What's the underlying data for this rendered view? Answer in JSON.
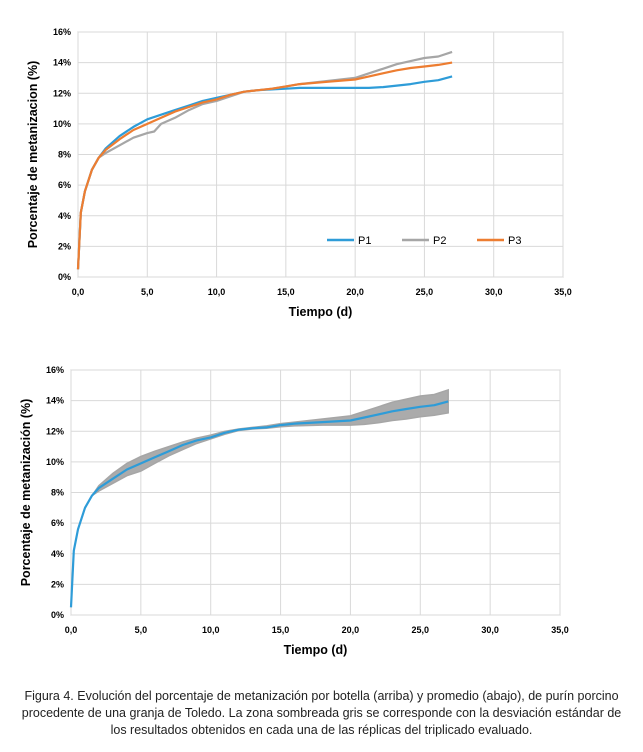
{
  "chart_data": [
    {
      "type": "line",
      "title": "",
      "xlabel": "Tiempo (d)",
      "ylabel": "Porcentaje de metanizacion (%)",
      "xlim": [
        0,
        35
      ],
      "ylim": [
        0,
        16
      ],
      "xticks": [
        "0,0",
        "5,0",
        "10,0",
        "15,0",
        "20,0",
        "25,0",
        "30,0",
        "35,0"
      ],
      "yticks": [
        "0%",
        "2%",
        "4%",
        "6%",
        "8%",
        "10%",
        "12%",
        "14%",
        "16%"
      ],
      "grid": true,
      "legend_position": "bottom-right",
      "series": [
        {
          "name": "P1",
          "color": "#2E9CD8",
          "x": [
            0,
            0.2,
            0.5,
            1,
            1.5,
            2,
            3,
            4,
            5,
            6,
            7,
            8,
            9,
            10,
            11,
            12,
            13,
            14,
            15,
            16,
            18,
            20,
            21,
            22,
            23,
            24,
            25,
            26,
            27
          ],
          "y": [
            0.5,
            4.2,
            5.6,
            7.0,
            7.8,
            8.4,
            9.2,
            9.8,
            10.3,
            10.6,
            10.9,
            11.2,
            11.5,
            11.7,
            11.9,
            12.1,
            12.2,
            12.25,
            12.3,
            12.35,
            12.35,
            12.35,
            12.35,
            12.4,
            12.5,
            12.6,
            12.75,
            12.85,
            13.1
          ]
        },
        {
          "name": "P2",
          "color": "#A6A6A6",
          "x": [
            0,
            0.2,
            0.5,
            1,
            1.5,
            2,
            3,
            4,
            5,
            5.5,
            6,
            7,
            8,
            9,
            10,
            11,
            12,
            13,
            14,
            15,
            16,
            18,
            20,
            21,
            22,
            23,
            24,
            25,
            26,
            27
          ],
          "y": [
            0.5,
            4.2,
            5.6,
            7.0,
            7.8,
            8.1,
            8.6,
            9.1,
            9.4,
            9.5,
            10.0,
            10.4,
            10.9,
            11.3,
            11.5,
            11.8,
            12.1,
            12.2,
            12.3,
            12.45,
            12.6,
            12.8,
            13.0,
            13.3,
            13.6,
            13.9,
            14.1,
            14.3,
            14.4,
            14.7
          ]
        },
        {
          "name": "P3",
          "color": "#ED7D31",
          "x": [
            0,
            0.2,
            0.5,
            1,
            1.5,
            2,
            3,
            4,
            5,
            6,
            7,
            8,
            9,
            10,
            11,
            12,
            13,
            14,
            15,
            16,
            18,
            20,
            21,
            22,
            23,
            24,
            25,
            26,
            27
          ],
          "y": [
            0.5,
            4.2,
            5.6,
            7.0,
            7.8,
            8.3,
            9.0,
            9.6,
            10.0,
            10.4,
            10.8,
            11.1,
            11.4,
            11.6,
            11.9,
            12.1,
            12.2,
            12.3,
            12.45,
            12.6,
            12.75,
            12.9,
            13.1,
            13.3,
            13.5,
            13.65,
            13.75,
            13.85,
            14.0
          ]
        }
      ]
    },
    {
      "type": "area",
      "title": "",
      "xlabel": "Tiempo (d)",
      "ylabel": "Porcentaje de metanización (%)",
      "xlim": [
        0,
        35
      ],
      "ylim": [
        0,
        16
      ],
      "xticks": [
        "0,0",
        "5,0",
        "10,0",
        "15,0",
        "20,0",
        "25,0",
        "30,0",
        "35,0"
      ],
      "yticks": [
        "0%",
        "2%",
        "4%",
        "6%",
        "8%",
        "10%",
        "12%",
        "14%",
        "16%"
      ],
      "grid": true,
      "series": [
        {
          "role": "mean",
          "color": "#2E9CD8",
          "x": [
            0,
            0.2,
            0.5,
            1,
            1.5,
            2,
            3,
            4,
            5,
            6,
            7,
            8,
            9,
            10,
            11,
            12,
            13,
            14,
            15,
            16,
            18,
            20,
            21,
            22,
            23,
            24,
            25,
            26,
            27
          ],
          "y": [
            0.5,
            4.2,
            5.6,
            7.0,
            7.8,
            8.3,
            8.9,
            9.5,
            9.9,
            10.3,
            10.7,
            11.1,
            11.4,
            11.6,
            11.9,
            12.1,
            12.2,
            12.25,
            12.4,
            12.5,
            12.6,
            12.7,
            12.9,
            13.1,
            13.3,
            13.45,
            13.6,
            13.7,
            13.95
          ]
        },
        {
          "role": "std_band",
          "color": "#A6A6A6",
          "x": [
            0,
            0.2,
            0.5,
            1,
            1.5,
            2,
            3,
            4,
            5,
            6,
            7,
            8,
            9,
            10,
            11,
            12,
            13,
            14,
            15,
            16,
            18,
            20,
            21,
            22,
            23,
            24,
            25,
            26,
            27
          ],
          "lower": [
            0.5,
            4.2,
            5.6,
            7.0,
            7.8,
            8.1,
            8.6,
            9.1,
            9.4,
            9.9,
            10.4,
            10.8,
            11.2,
            11.5,
            11.8,
            12.05,
            12.15,
            12.2,
            12.3,
            12.35,
            12.4,
            12.4,
            12.45,
            12.55,
            12.7,
            12.8,
            12.95,
            13.05,
            13.2
          ],
          "upper": [
            0.5,
            4.2,
            5.6,
            7.0,
            7.8,
            8.45,
            9.25,
            9.9,
            10.35,
            10.7,
            11.0,
            11.3,
            11.55,
            11.75,
            12.0,
            12.15,
            12.25,
            12.35,
            12.5,
            12.6,
            12.8,
            13.0,
            13.3,
            13.6,
            13.9,
            14.1,
            14.3,
            14.4,
            14.7
          ]
        }
      ]
    }
  ],
  "caption": "Figura 4. Evolución del porcentaje de metanización por botella (arriba) y promedio (abajo), de purín porcino procedente de una granja de Toledo. La zona sombreada gris se corresponde con la desviación estándar de los resultados obtenidos en cada una de las réplicas del triplicado evaluado."
}
